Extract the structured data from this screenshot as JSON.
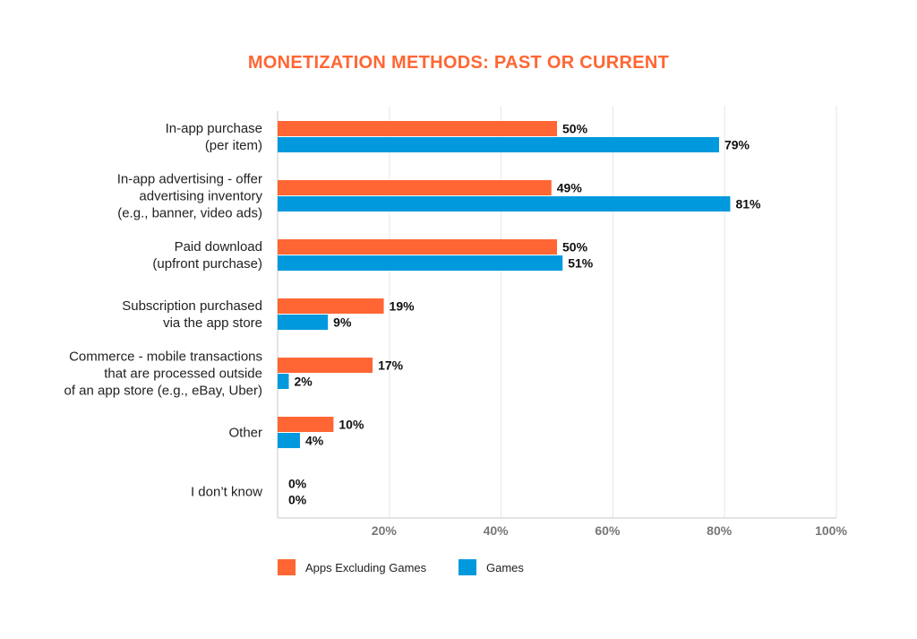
{
  "chart_data": {
    "type": "bar",
    "orientation": "horizontal",
    "title": "MONETIZATION METHODS: PAST OR CURRENT",
    "categories": [
      [
        "In-app purchase",
        "(per item)"
      ],
      [
        "In-app advertising - offer",
        "advertising inventory",
        "(e.g., banner, video ads)"
      ],
      [
        "Paid download",
        "(upfront purchase)"
      ],
      [
        "Subscription purchased",
        "via the app store"
      ],
      [
        "Commerce - mobile transactions",
        "that are processed outside",
        "of an app store (e.g., eBay, Uber)"
      ],
      [
        "Other"
      ],
      [
        "I don’t know"
      ]
    ],
    "series": [
      {
        "name": "Apps Excluding Games",
        "color": "#FF6633",
        "values": [
          50,
          49,
          50,
          19,
          17,
          10,
          0
        ]
      },
      {
        "name": "Games",
        "color": "#0099DD",
        "values": [
          79,
          81,
          51,
          9,
          2,
          4,
          0
        ]
      }
    ],
    "value_suffix": "%",
    "xlim": [
      0,
      100
    ],
    "xticks": [
      20,
      40,
      60,
      80,
      100
    ],
    "xtick_labels": [
      "20%",
      "40%",
      "60%",
      "80%",
      "100%"
    ],
    "grid": true,
    "legend_position": "bottom-left",
    "title_color": "#FF6633",
    "xlabel": "",
    "ylabel": ""
  }
}
